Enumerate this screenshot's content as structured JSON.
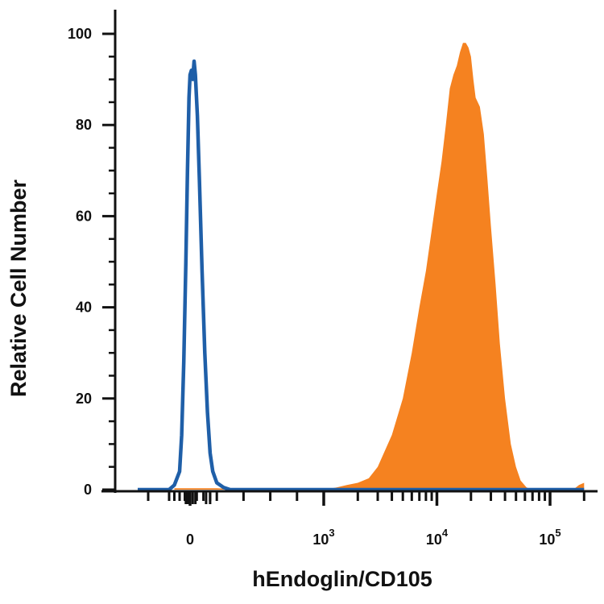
{
  "chart_data": {
    "type": "histogram",
    "xlabel": "hEndoglin/CD105",
    "ylabel": "Relative Cell Number",
    "x_scale": "biexponential (linear near 0, log above 10^3)",
    "ylim": [
      0,
      100
    ],
    "y_ticks": [
      "0",
      "20",
      "40",
      "60",
      "80",
      "100"
    ],
    "x_ticks": [
      {
        "value": 0,
        "base": "0",
        "exp": ""
      },
      {
        "value": 1000,
        "base": "10",
        "exp": "3"
      },
      {
        "value": 10000,
        "base": "10",
        "exp": "4"
      },
      {
        "value": 100000,
        "base": "10",
        "exp": "5"
      }
    ],
    "series": [
      {
        "style": "outline",
        "color": "#1f5fa8",
        "points": [
          [
            -500,
            0
          ],
          [
            -200,
            0
          ],
          [
            -150,
            1
          ],
          [
            -100,
            4
          ],
          [
            -80,
            12
          ],
          [
            -60,
            28
          ],
          [
            -40,
            50
          ],
          [
            -25,
            70
          ],
          [
            -10,
            86
          ],
          [
            0,
            91
          ],
          [
            10,
            92
          ],
          [
            20,
            90
          ],
          [
            30,
            94
          ],
          [
            40,
            91
          ],
          [
            55,
            82
          ],
          [
            70,
            68
          ],
          [
            90,
            48
          ],
          [
            110,
            30
          ],
          [
            130,
            17
          ],
          [
            150,
            8
          ],
          [
            170,
            4
          ],
          [
            200,
            1.5
          ],
          [
            250,
            0.5
          ],
          [
            300,
            0
          ],
          [
            1000,
            0
          ],
          [
            5000,
            0
          ],
          [
            100000,
            0
          ],
          [
            200000,
            0
          ]
        ]
      },
      {
        "style": "filled",
        "color": "#f58220",
        "points": [
          [
            -150,
            0.3
          ],
          [
            200,
            0.3
          ],
          [
            400,
            0
          ],
          [
            1000,
            0
          ],
          [
            1300,
            0.5
          ],
          [
            1600,
            1
          ],
          [
            2000,
            1.5
          ],
          [
            2500,
            2.5
          ],
          [
            3000,
            5
          ],
          [
            4000,
            12
          ],
          [
            5000,
            20
          ],
          [
            6000,
            30
          ],
          [
            7000,
            40
          ],
          [
            8000,
            48
          ],
          [
            9000,
            57
          ],
          [
            10000,
            65
          ],
          [
            11000,
            72
          ],
          [
            12000,
            80
          ],
          [
            13000,
            88
          ],
          [
            14000,
            91
          ],
          [
            15000,
            93
          ],
          [
            16000,
            96
          ],
          [
            17000,
            98
          ],
          [
            18000,
            98
          ],
          [
            19000,
            97
          ],
          [
            20000,
            95
          ],
          [
            21000,
            90
          ],
          [
            22000,
            86
          ],
          [
            24000,
            84
          ],
          [
            26000,
            78
          ],
          [
            28000,
            68
          ],
          [
            30000,
            58
          ],
          [
            33000,
            45
          ],
          [
            36000,
            32
          ],
          [
            40000,
            20
          ],
          [
            45000,
            10
          ],
          [
            50000,
            5
          ],
          [
            55000,
            2
          ],
          [
            62000,
            0.5
          ],
          [
            70000,
            0
          ],
          [
            100000,
            0
          ],
          [
            160000,
            0
          ],
          [
            180000,
            1
          ],
          [
            200000,
            1.5
          ]
        ]
      }
    ]
  }
}
